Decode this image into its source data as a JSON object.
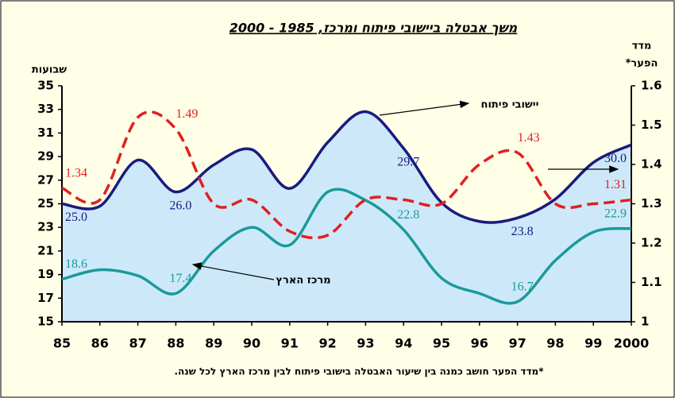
{
  "chart_data": {
    "type": "line",
    "title": "משך אבטלה ביישובי פיתוח ומרכז, 1985 - 2000",
    "y_label": "שבועות",
    "y2_label": [
      "מדד",
      "הפער*"
    ],
    "footnote": "*מדד הפער חושב כמנה בין שיעור האבטלה בישובי פיתוח לבין מרכז הארץ לכל שנה.",
    "categories": [
      "85",
      "86",
      "87",
      "88",
      "89",
      "90",
      "91",
      "92",
      "93",
      "94",
      "95",
      "96",
      "97",
      "98",
      "99",
      "2000"
    ],
    "ylim": [
      15,
      35
    ],
    "yticks": [
      15,
      17,
      19,
      21,
      23,
      25,
      27,
      29,
      31,
      33,
      35
    ],
    "y2lim": [
      1,
      1.6
    ],
    "y2ticks": [
      1,
      1.1,
      1.2,
      1.3,
      1.4,
      1.5,
      1.6
    ],
    "series": [
      {
        "name": "יישובי פיתוח",
        "color": "#1a1a80",
        "area": true,
        "area_color": "#cde9f9",
        "values": [
          25.0,
          24.8,
          28.7,
          26.0,
          28.3,
          29.6,
          26.3,
          30.2,
          32.8,
          29.7,
          25.1,
          23.5,
          23.8,
          25.4,
          28.5,
          30.0
        ],
        "value_labels": [
          "25.0",
          null,
          null,
          "26.0",
          null,
          null,
          null,
          null,
          null,
          "29.7",
          null,
          null,
          "23.8",
          null,
          null,
          "30.0"
        ]
      },
      {
        "name": "מרכז הארץ",
        "color": "#1a9a9a",
        "values": [
          18.6,
          19.4,
          18.9,
          17.4,
          21.0,
          23.0,
          21.5,
          26.0,
          25.3,
          22.8,
          18.7,
          17.4,
          16.7,
          20.2,
          22.6,
          22.9
        ],
        "value_labels": [
          "18.6",
          null,
          null,
          "17.4",
          null,
          null,
          null,
          null,
          null,
          "22.8",
          null,
          null,
          "16.7",
          null,
          null,
          "22.9"
        ]
      },
      {
        "color": "#e02020",
        "axis": "y2",
        "dashed": true,
        "values": [
          1.34,
          1.31,
          1.52,
          1.49,
          1.3,
          1.31,
          1.23,
          1.22,
          1.31,
          1.31,
          1.3,
          1.4,
          1.43,
          1.3,
          1.3,
          1.31
        ],
        "value_labels": [
          "1.34",
          null,
          null,
          "1.49",
          null,
          null,
          null,
          null,
          null,
          null,
          null,
          null,
          "1.43",
          null,
          null,
          "1.31"
        ]
      }
    ]
  }
}
